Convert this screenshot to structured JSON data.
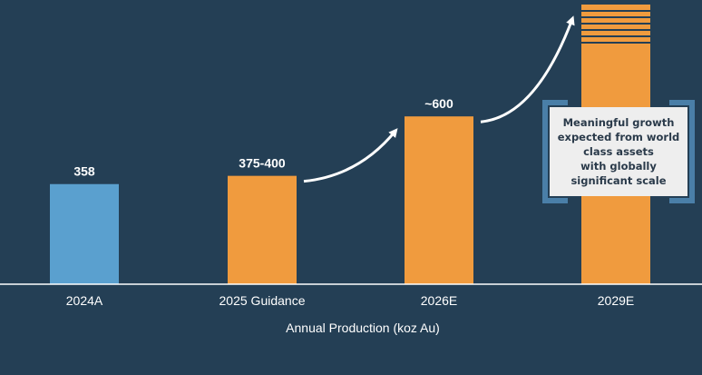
{
  "chart_data": {
    "type": "bar",
    "categories": [
      "2024A",
      "2025 Guidance",
      "2026E",
      "2029E"
    ],
    "values": [
      358,
      387.5,
      600,
      1000
    ],
    "data_labels": [
      "358",
      "375-400",
      "~600",
      ""
    ],
    "xlabel": "Annual Production (koz Au)",
    "ylabel": "",
    "title": "",
    "colors": [
      "#5aa0cf",
      "#f09b3e",
      "#f09b3e",
      "#f09b3e"
    ],
    "ylim": [
      0,
      1000
    ],
    "grid": false,
    "growth_arrows": true
  },
  "callout": {
    "text": "Meaningful growth\nexpected from world\nclass assets\nwith globally\nsignificant scale"
  },
  "colors": {
    "background": "#243f55",
    "axis": "#ffffff",
    "arrow": "#ffffff",
    "callout_bracket": "#4a7fa8",
    "callout_fill": "#eeeeee"
  }
}
